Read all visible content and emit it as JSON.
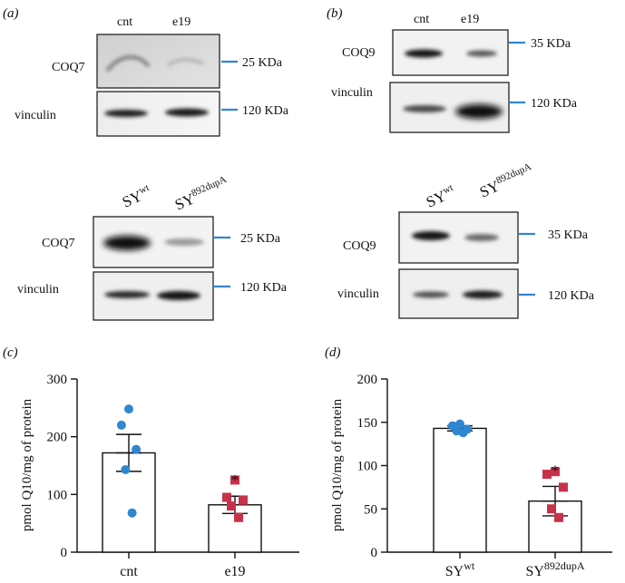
{
  "panels": {
    "a": "(a)",
    "b": "(b)",
    "c": "(c)",
    "d": "(d)"
  },
  "blot_a_top": {
    "lane_labels": [
      "cnt",
      "e19"
    ],
    "rows": [
      {
        "label": "COQ7",
        "marker": "25 KDa"
      },
      {
        "label": "vinculin",
        "marker": "120 KDa"
      }
    ]
  },
  "blot_b_top": {
    "lane_labels": [
      "cnt",
      "e19"
    ],
    "rows": [
      {
        "label": "COQ9",
        "marker": "35 KDa"
      },
      {
        "label": "vinculin",
        "marker": "120 KDa"
      }
    ]
  },
  "blot_a_bottom": {
    "lane_labels": [
      {
        "base": "SY",
        "sup": "wt"
      },
      {
        "base": "SY",
        "sup": "892dupA"
      }
    ],
    "rows": [
      {
        "label": "COQ7",
        "marker": "25 KDa"
      },
      {
        "label": "vinculin",
        "marker": "120 KDa"
      }
    ]
  },
  "blot_b_bottom": {
    "lane_labels": [
      {
        "base": "SY",
        "sup": "wt"
      },
      {
        "base": "SY",
        "sup": "892dupA"
      }
    ],
    "rows": [
      {
        "label": "COQ9",
        "marker": "35 KDa"
      },
      {
        "label": "vinculin",
        "marker": "120 KDa"
      }
    ]
  },
  "chart_data": [
    {
      "type": "bar",
      "panel": "c",
      "ylabel": "pmol Q10/mg of protein",
      "ylim": [
        0,
        300
      ],
      "yticks": [
        0,
        100,
        200,
        300
      ],
      "categories": [
        "cnt",
        "e19"
      ],
      "values": [
        172,
        82
      ],
      "error": [
        32,
        15
      ],
      "points": [
        [
          248,
          220,
          178,
          143,
          68
        ],
        [
          125,
          95,
          90,
          80,
          60
        ]
      ],
      "point_colors": [
        "#2f86d1",
        "#c8314a"
      ],
      "significance": [
        "",
        "*"
      ]
    },
    {
      "type": "bar",
      "panel": "d",
      "ylabel": "pmol Q10/mg of protein",
      "ylim": [
        0,
        200
      ],
      "yticks": [
        0,
        50,
        100,
        150,
        200
      ],
      "categories": [
        {
          "base": "SY",
          "sup": "wt"
        },
        {
          "base": "SY",
          "sup": "892dupA"
        }
      ],
      "values": [
        143,
        59
      ],
      "error": [
        3,
        17
      ],
      "points": [
        [
          148,
          146,
          142,
          140,
          138
        ],
        [
          93,
          90,
          75,
          50,
          40
        ]
      ],
      "point_colors": [
        "#2f86d1",
        "#c8314a"
      ],
      "significance": [
        "",
        "*"
      ]
    }
  ]
}
